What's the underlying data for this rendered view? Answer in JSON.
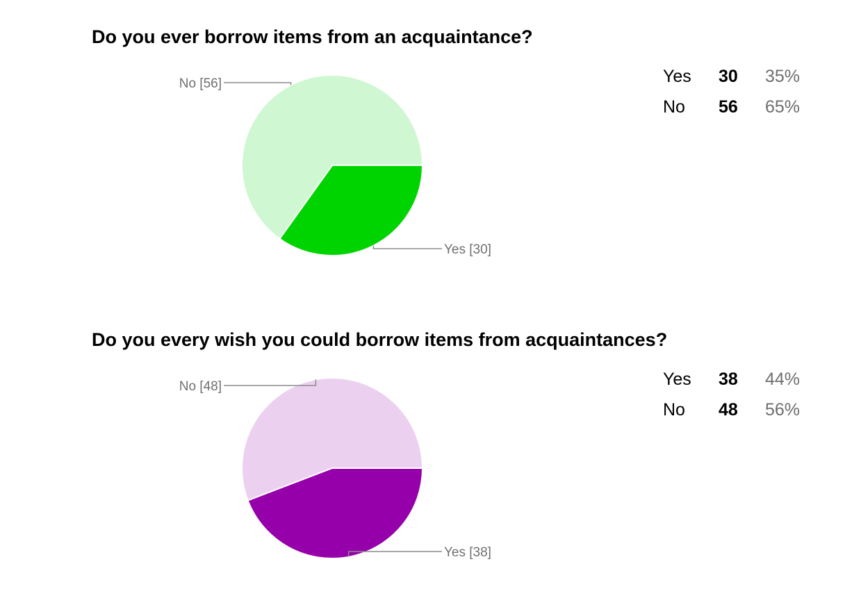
{
  "questions": [
    {
      "title": "Do you ever borrow items from an acquaintance?",
      "summary": [
        {
          "label": "Yes",
          "count": "30",
          "percent": "35%"
        },
        {
          "label": "No",
          "count": "56",
          "percent": "65%"
        }
      ]
    },
    {
      "title": "Do you every wish you could borrow items from acquaintances?",
      "summary": [
        {
          "label": "Yes",
          "count": "38",
          "percent": "44%"
        },
        {
          "label": "No",
          "count": "48",
          "percent": "56%"
        }
      ]
    }
  ],
  "chart_data": [
    {
      "type": "pie",
      "title": "Do you ever borrow items from an acquaintance?",
      "categories": [
        "Yes",
        "No"
      ],
      "values": [
        30,
        56
      ],
      "percentages": [
        35,
        65
      ],
      "slice_labels": [
        "Yes [30]",
        "No [56]"
      ],
      "colors": [
        "#00d400",
        "#cff7d1"
      ],
      "legend": "none"
    },
    {
      "type": "pie",
      "title": "Do you every wish you could borrow items from acquaintances?",
      "categories": [
        "Yes",
        "No"
      ],
      "values": [
        38,
        48
      ],
      "percentages": [
        44,
        56
      ],
      "slice_labels": [
        "Yes [38]",
        "No [48]"
      ],
      "colors": [
        "#9600aa",
        "#ecd0f0"
      ],
      "legend": "none"
    }
  ]
}
